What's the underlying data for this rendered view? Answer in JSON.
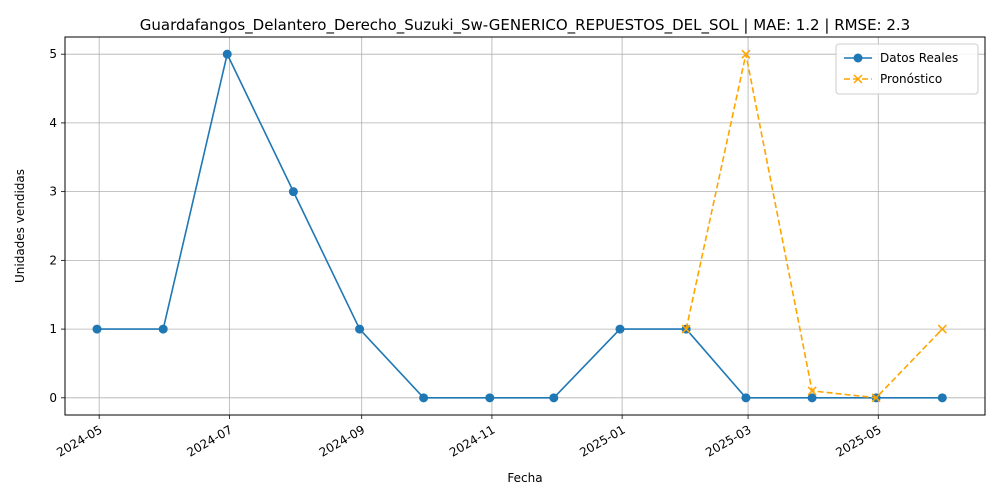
{
  "chart_data": {
    "type": "line",
    "title": "Guardafangos_Delantero_Derecho_Suzuki_Sw-GENERICO_REPUESTOS_DEL_SOL | MAE: 1.2 | RMSE: 2.3",
    "xlabel": "Fecha",
    "ylabel": "Unidades vendidas",
    "ylim": [
      -0.25,
      5.25
    ],
    "xlim": [
      "2024-04-15",
      "2025-06-20"
    ],
    "grid": true,
    "legend_position": "top-right",
    "x_ticks": [
      "2024-05",
      "2024-07",
      "2024-09",
      "2024-11",
      "2025-01",
      "2025-03",
      "2025-05"
    ],
    "y_ticks": [
      0,
      1,
      2,
      3,
      4,
      5
    ],
    "series": [
      {
        "name": "Datos Reales",
        "color": "#1f77b4",
        "style": "solid",
        "marker": "circle",
        "x": [
          "2024-04-30",
          "2024-05-31",
          "2024-06-30",
          "2024-07-31",
          "2024-08-31",
          "2024-09-30",
          "2024-10-31",
          "2024-11-30",
          "2024-12-31",
          "2025-01-31",
          "2025-02-28",
          "2025-03-31",
          "2025-04-30",
          "2025-05-31"
        ],
        "values": [
          1,
          1,
          5,
          3,
          1,
          0,
          0,
          0,
          1,
          1,
          0,
          0,
          0,
          0
        ]
      },
      {
        "name": "Pronóstico",
        "color": "#ffa500",
        "style": "dashed",
        "marker": "x",
        "x": [
          "2025-01-31",
          "2025-02-28",
          "2025-03-31",
          "2025-04-30",
          "2025-05-31"
        ],
        "values": [
          1,
          5,
          0.1,
          0,
          1
        ]
      }
    ]
  }
}
